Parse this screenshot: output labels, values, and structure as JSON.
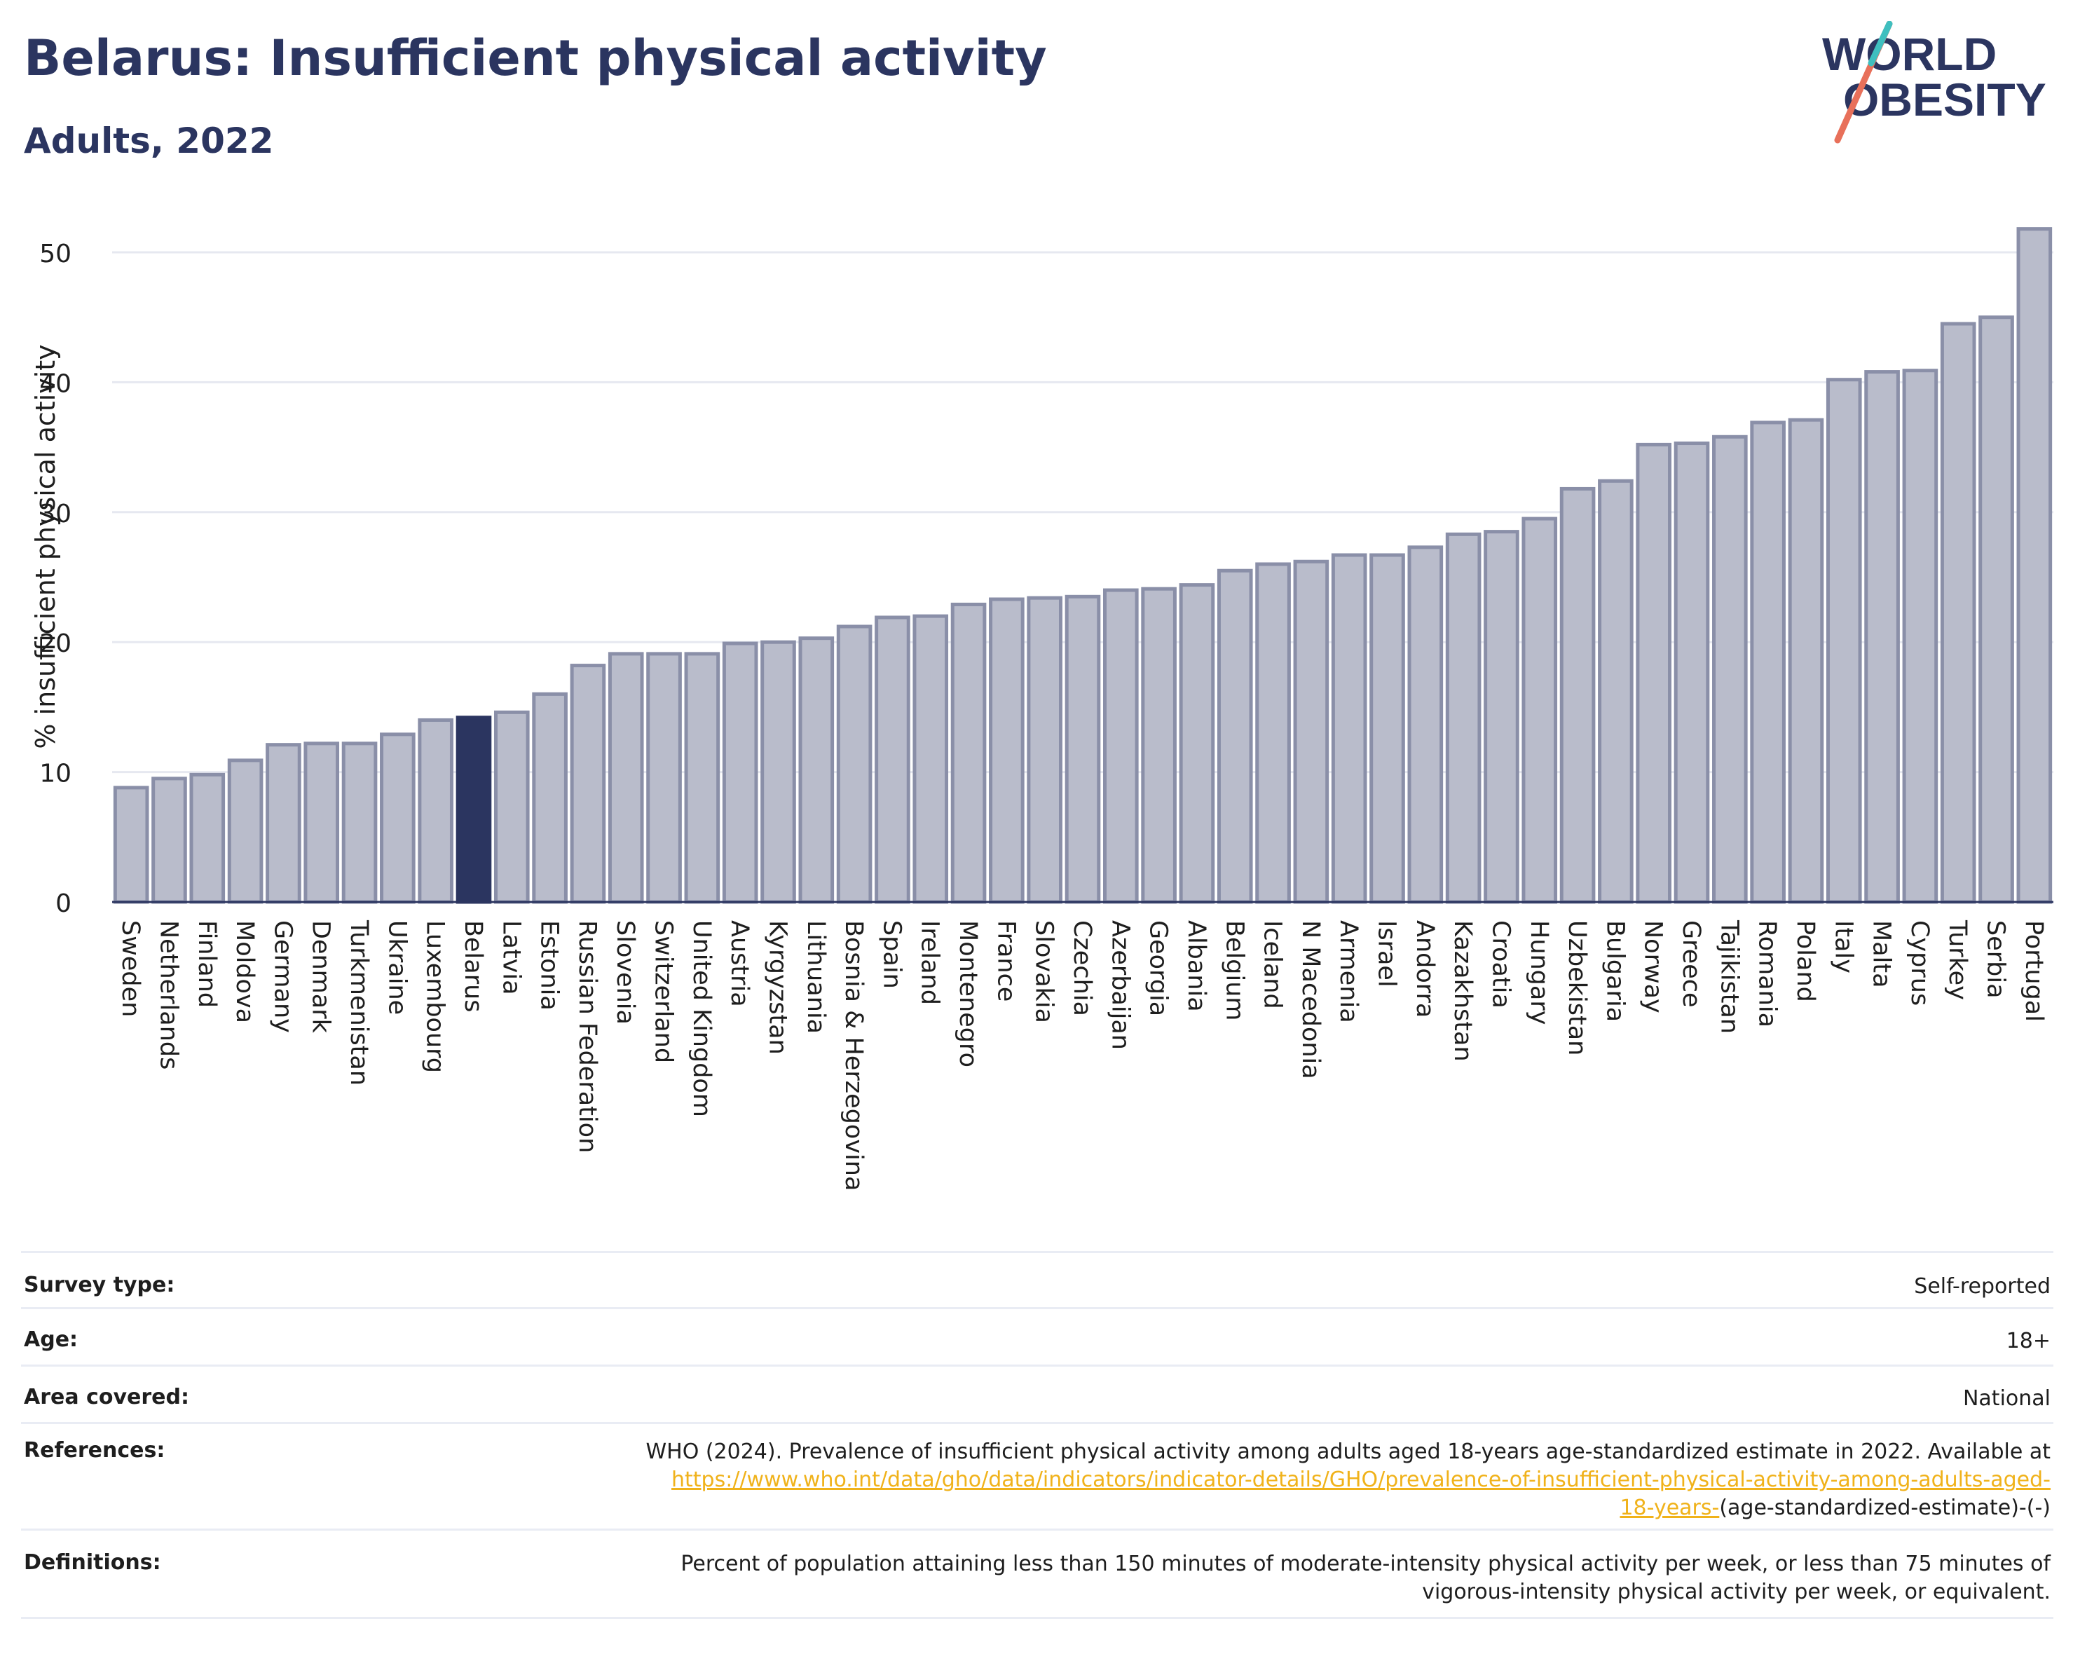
{
  "header": {
    "title": "Belarus: Insufficient physical activity",
    "subtitle": "Adults, 2022"
  },
  "logo": {
    "line1": "WORLD",
    "line2": "OBESITY"
  },
  "colors": {
    "highlight": "#2b3560",
    "bar_fill": "#b9bccb",
    "bar_stroke": "#8a8fa8",
    "grid": "#e6e8f0",
    "link": "#f0b21a"
  },
  "chart_data": {
    "type": "bar",
    "ylabel": "% insufficient physical activity",
    "xlabel": "",
    "ylim": [
      0,
      53
    ],
    "yticks": [
      0,
      10,
      20,
      30,
      40,
      50
    ],
    "grid": true,
    "highlight": "Belarus",
    "categories": [
      "Sweden",
      "Netherlands",
      "Finland",
      "Moldova",
      "Germany",
      "Denmark",
      "Turkmenistan",
      "Ukraine",
      "Luxembourg",
      "Belarus",
      "Latvia",
      "Estonia",
      "Russian Federation",
      "Slovenia",
      "Switzerland",
      "United Kingdom",
      "Austria",
      "Kyrgyzstan",
      "Lithuania",
      "Bosnia & Herzegovina",
      "Spain",
      "Ireland",
      "Montenegro",
      "France",
      "Slovakia",
      "Czechia",
      "Azerbaijan",
      "Georgia",
      "Albania",
      "Belgium",
      "Iceland",
      "N Macedonia",
      "Armenia",
      "Israel",
      "Andorra",
      "Kazakhstan",
      "Croatia",
      "Hungary",
      "Uzbekistan",
      "Bulgaria",
      "Norway",
      "Greece",
      "Tajikistan",
      "Romania",
      "Poland",
      "Italy",
      "Malta",
      "Cyprus",
      "Turkey",
      "Serbia",
      "Portugal"
    ],
    "values": [
      8.8,
      9.5,
      9.8,
      10.9,
      12.1,
      12.2,
      12.2,
      12.9,
      14.0,
      14.2,
      14.6,
      16.0,
      18.2,
      19.1,
      19.1,
      19.1,
      19.9,
      20.0,
      20.3,
      21.2,
      21.9,
      22.0,
      22.9,
      23.3,
      23.4,
      23.5,
      24.0,
      24.1,
      24.4,
      25.5,
      26.0,
      26.2,
      26.7,
      26.7,
      27.3,
      28.3,
      28.5,
      29.5,
      31.8,
      32.4,
      35.2,
      35.3,
      35.8,
      36.9,
      37.1,
      40.2,
      40.8,
      40.9,
      44.5,
      45.0,
      51.8
    ]
  },
  "meta": {
    "survey_type_label": "Survey type:",
    "survey_type_value": "Self-reported",
    "age_label": "Age:",
    "age_value": "18+",
    "area_label": "Area covered:",
    "area_value": "National",
    "references_label": "References:",
    "references_text": "WHO (2024). Prevalence of insufficient physical activity among adults aged 18-years age-standardized estimate in 2022. Available at",
    "references_link_1": "https://www.who.int/data/gho/data/indicators/indicator-details/GHO/prevalence-of-insufficient-physical-activity-among-adults-aged-",
    "references_link_2": "18-years-",
    "references_tail": "(age-standardized-estimate)-(-)",
    "definitions_label": "Definitions:",
    "definitions_text_1": "Percent of population attaining less than 150 minutes of moderate-intensity physical activity per week, or less than 75 minutes of",
    "definitions_text_2": "vigorous-intensity physical activity per week, or equivalent."
  }
}
